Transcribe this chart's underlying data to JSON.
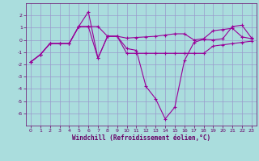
{
  "xlabel": "Windchill (Refroidissement éolien,°C)",
  "bg_color": "#aadddd",
  "grid_color": "#9999cc",
  "line_color": "#990099",
  "xlim": [
    -0.5,
    23.5
  ],
  "ylim": [
    -7,
    3
  ],
  "yticks": [
    -6,
    -5,
    -4,
    -3,
    -2,
    -1,
    0,
    1,
    2
  ],
  "xticks": [
    0,
    1,
    2,
    3,
    4,
    5,
    6,
    7,
    8,
    9,
    10,
    11,
    12,
    13,
    14,
    15,
    16,
    17,
    18,
    19,
    20,
    21,
    22,
    23
  ],
  "series1_x": [
    0,
    1,
    2,
    3,
    4,
    5,
    6,
    7,
    8,
    9,
    10,
    11,
    12,
    13,
    14,
    15,
    16,
    17,
    18,
    19,
    20,
    21,
    22,
    23
  ],
  "series1_y": [
    -1.8,
    -1.2,
    -0.3,
    -0.3,
    -0.3,
    1.1,
    2.3,
    -1.5,
    0.3,
    0.3,
    -0.7,
    -0.85,
    -3.8,
    -4.8,
    -6.45,
    -5.5,
    -1.7,
    -0.2,
    0.05,
    0.0,
    0.1,
    1.1,
    1.2,
    0.15
  ],
  "series2_x": [
    0,
    1,
    2,
    3,
    4,
    5,
    6,
    7,
    8,
    9,
    10,
    11,
    12,
    13,
    14,
    15,
    16,
    17,
    18,
    19,
    20,
    21,
    22,
    23
  ],
  "series2_y": [
    -1.8,
    -1.2,
    -0.3,
    -0.3,
    -0.3,
    1.1,
    1.1,
    1.1,
    0.3,
    0.3,
    0.15,
    0.2,
    0.25,
    0.3,
    0.4,
    0.5,
    0.5,
    0.0,
    0.1,
    0.75,
    0.85,
    0.95,
    0.25,
    0.1
  ],
  "series3_x": [
    0,
    1,
    2,
    3,
    4,
    5,
    6,
    7,
    8,
    9,
    10,
    11,
    12,
    13,
    14,
    15,
    16,
    17,
    18,
    19,
    20,
    21,
    22,
    23
  ],
  "series3_y": [
    -1.8,
    -1.2,
    -0.3,
    -0.3,
    -0.3,
    1.1,
    1.1,
    -1.5,
    0.3,
    0.3,
    -1.1,
    -1.1,
    -1.1,
    -1.1,
    -1.1,
    -1.1,
    -1.1,
    -1.1,
    -1.1,
    -0.5,
    -0.4,
    -0.3,
    -0.2,
    -0.1
  ]
}
